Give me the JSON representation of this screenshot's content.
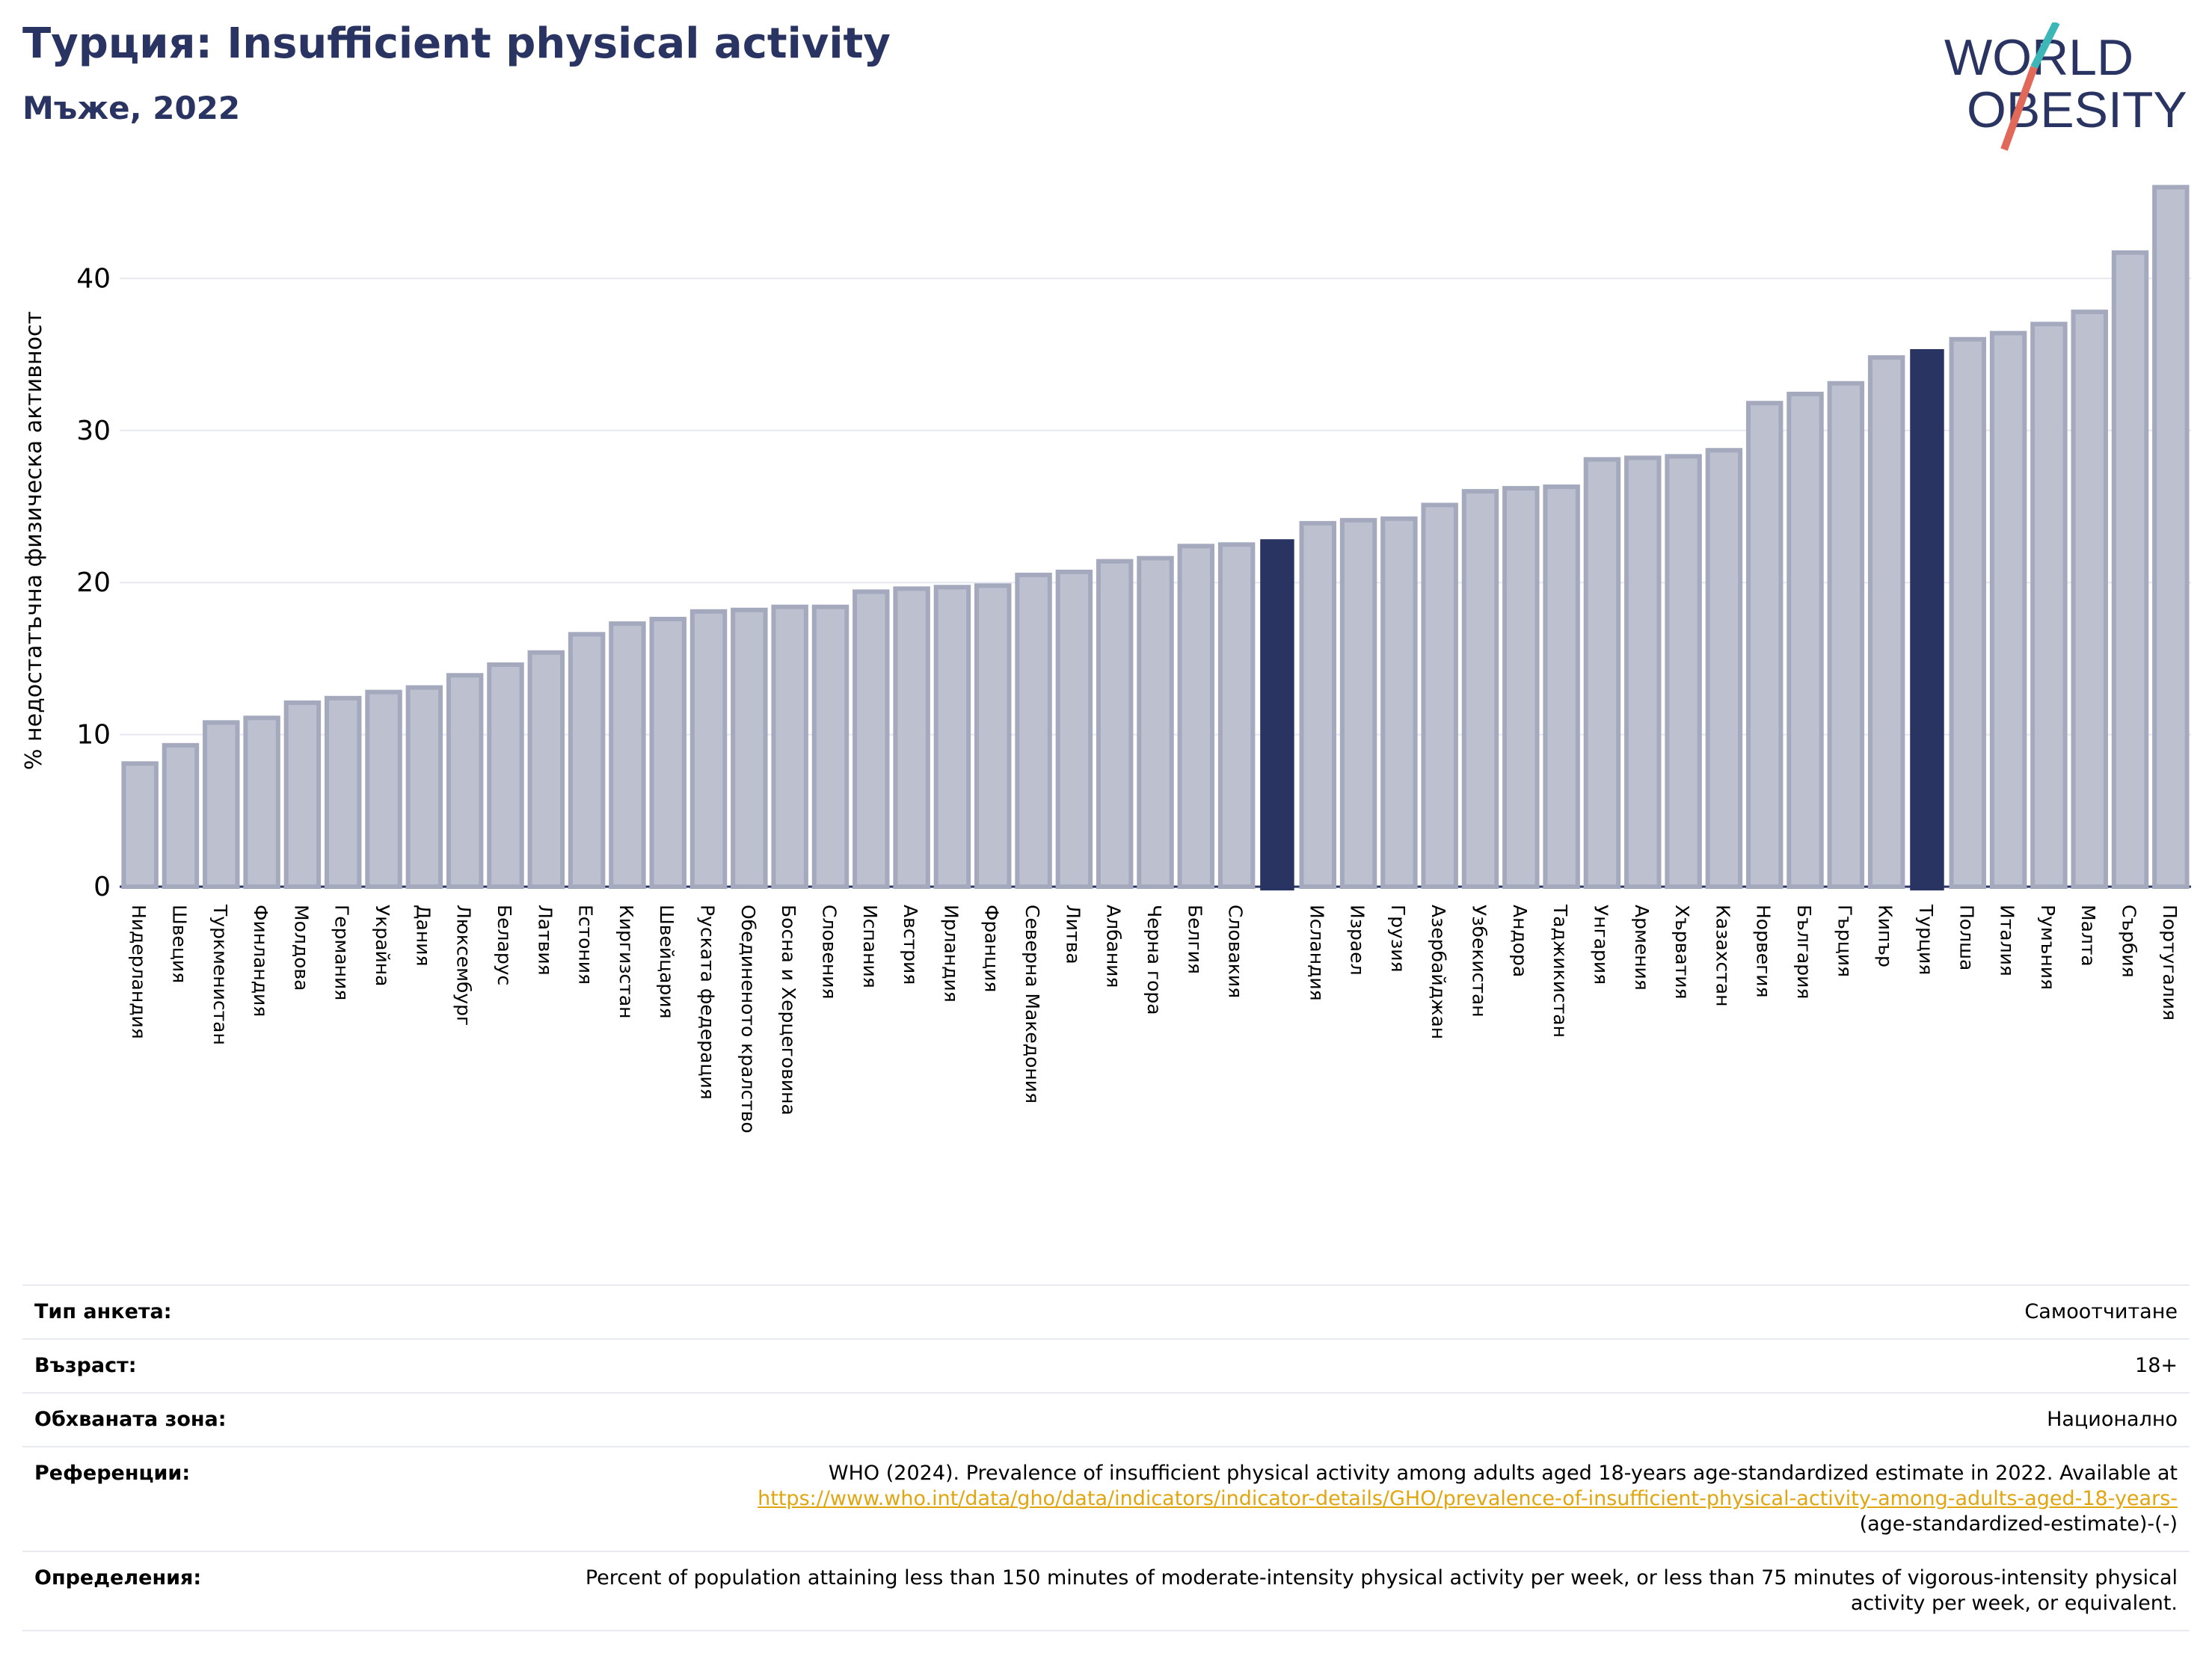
{
  "header": {
    "title": "Турция: Insufficient physical activity",
    "subtitle": "Мъже, 2022",
    "logo_line1": "WORLD",
    "logo_line2": "OBESITY"
  },
  "colors": {
    "bar_default": "#bcc0cf",
    "bar_outline": "#a4a9bd",
    "bar_highlight": "#2a3462",
    "gridline": "#e6e8ef",
    "logo_text": "#2a3462",
    "logo_slash_teal": "#3cb6b7",
    "logo_slash_red": "#e0695a",
    "link": "#e1a50f"
  },
  "chart_data": {
    "type": "bar",
    "ylabel": "% недостатъчна физическа активност",
    "ylim": [
      0,
      47
    ],
    "yticks": [
      0,
      10,
      20,
      30,
      40
    ],
    "grid": true,
    "categories": [
      "Нидерландия",
      "Швеция",
      "Туркменистан",
      "Финландия",
      "Молдова",
      "Германия",
      "Украйна",
      "Дания",
      "Люксембург",
      "Беларус",
      "Латвия",
      "Естония",
      "Киргизстан",
      "Швейцария",
      "Руската федерация",
      "Обединеното кралство",
      "Босна и Херцеговина",
      "Словения",
      "Испания",
      "Австрия",
      "Ирландия",
      "Франция",
      "Северна Македония",
      "Литва",
      "Албания",
      "Черна гора",
      "Белгия",
      "Словакия",
      "",
      "Исландия",
      "Израел",
      "Грузия",
      "Азербайджан",
      "Узбекистан",
      "Андора",
      "Таджикистан",
      "Унгария",
      "Армения",
      "Хърватия",
      "Казахстан",
      "Норвегия",
      "България",
      "Гърция",
      "Кипър",
      "Турция",
      "Полша",
      "Италия",
      "Румъния",
      "Малта",
      "Сърбия",
      "Португалия"
    ],
    "values": [
      8.1,
      9.3,
      10.8,
      11.1,
      12.1,
      12.4,
      12.8,
      13.1,
      13.9,
      14.6,
      15.4,
      16.6,
      17.3,
      17.6,
      18.1,
      18.2,
      18.4,
      18.4,
      19.4,
      19.6,
      19.7,
      19.8,
      20.5,
      20.7,
      21.4,
      21.6,
      22.4,
      22.5,
      22.8,
      23.9,
      24.1,
      24.2,
      25.1,
      26.0,
      26.2,
      26.3,
      28.1,
      28.2,
      28.3,
      28.7,
      31.8,
      32.4,
      33.1,
      34.8,
      35.3,
      36.0,
      36.4,
      37.0,
      37.8,
      41.7,
      46.0
    ],
    "highlight": [
      "",
      "Турция"
    ]
  },
  "info": {
    "survey_label": "Тип анкета:",
    "survey_value": "Самоотчитане",
    "age_label": "Възраст:",
    "age_value": "18+",
    "coverage_label": "Обхваната зона:",
    "coverage_value": "Национално",
    "refs_label": "Референции:",
    "refs_text": "WHO (2024). Prevalence of insufficient physical activity among adults aged 18-years age-standardized estimate in 2022. Available at",
    "refs_link": "https://www.who.int/data/gho/data/indicators/indicator-details/GHO/prevalence-of-insufficient-physical-activity-among-adults-aged-18-years-",
    "refs_tail": "(age-standardized-estimate)-(-)",
    "defs_label": "Определения:",
    "defs_text": "Percent of population attaining less than 150 minutes of moderate-intensity physical activity per week, or less than 75 minutes of vigorous-intensity physical activity per week, or equivalent."
  }
}
